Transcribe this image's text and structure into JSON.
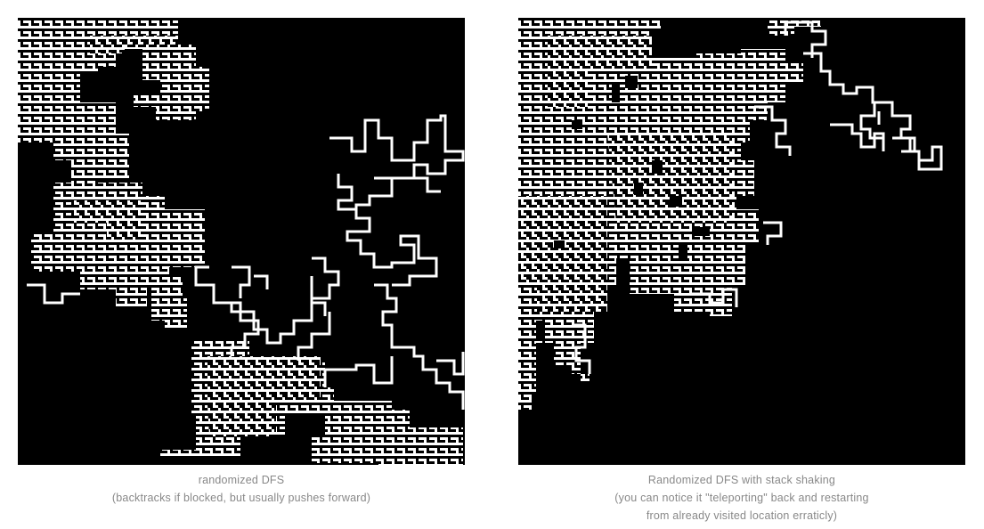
{
  "panels": [
    {
      "caption_lines": [
        "randomized DFS",
        "(backtracks if blocked, but usually pushes forward)"
      ]
    },
    {
      "caption_lines": [
        "Randomized DFS with stack shaking",
        "(you can notice it \"teleporting\" back and restarting",
        "from already visited location erraticly)"
      ]
    }
  ],
  "colors": {
    "maze_background": "#000000",
    "maze_paths": "#ffffff",
    "caption_text": "#888888"
  }
}
